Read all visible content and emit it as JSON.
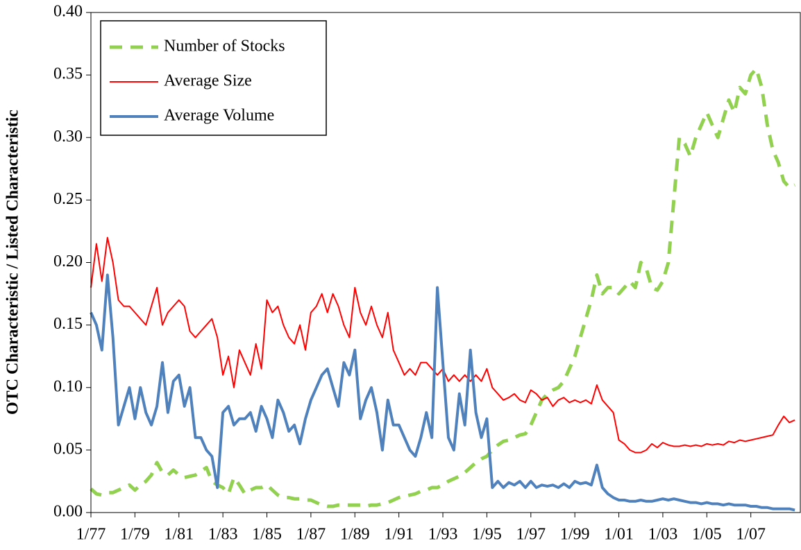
{
  "chart_data": {
    "type": "line",
    "y_label": "OTC Characteristic / Listed Characteristic",
    "x": [
      "1/77",
      "4/77",
      "7/77",
      "10/77",
      "1/78",
      "4/78",
      "7/78",
      "10/78",
      "1/79",
      "4/79",
      "7/79",
      "10/79",
      "1/80",
      "4/80",
      "7/80",
      "10/80",
      "1/81",
      "4/81",
      "7/81",
      "10/81",
      "1/82",
      "4/82",
      "7/82",
      "10/82",
      "1/83",
      "4/83",
      "7/83",
      "10/83",
      "1/84",
      "4/84",
      "7/84",
      "10/84",
      "1/85",
      "4/85",
      "7/85",
      "10/85",
      "1/86",
      "4/86",
      "7/86",
      "10/86",
      "1/87",
      "4/87",
      "7/87",
      "10/87",
      "1/88",
      "4/88",
      "7/88",
      "10/88",
      "1/89",
      "4/89",
      "7/89",
      "10/89",
      "1/90",
      "4/90",
      "7/90",
      "10/90",
      "1/91",
      "4/91",
      "7/91",
      "10/91",
      "1/92",
      "4/92",
      "7/92",
      "10/92",
      "1/93",
      "4/93",
      "7/93",
      "10/93",
      "1/94",
      "4/94",
      "7/94",
      "10/94",
      "1/95",
      "4/95",
      "7/95",
      "10/95",
      "1/96",
      "4/96",
      "7/96",
      "10/96",
      "1/97",
      "4/97",
      "7/97",
      "10/97",
      "1/98",
      "4/98",
      "7/98",
      "10/98",
      "1/99",
      "4/99",
      "7/99",
      "10/99",
      "1/00",
      "4/00",
      "7/00",
      "10/00",
      "1/01",
      "4/01",
      "7/01",
      "10/01",
      "1/02",
      "4/02",
      "7/02",
      "10/02",
      "1/03",
      "4/03",
      "7/03",
      "10/03",
      "1/04",
      "4/04",
      "7/04",
      "10/04",
      "1/05",
      "4/05",
      "7/05",
      "10/05",
      "1/06",
      "4/06",
      "7/06",
      "10/06",
      "1/07",
      "4/07",
      "7/07",
      "10/07",
      "1/08",
      "4/08",
      "7/08",
      "10/08",
      "1/09"
    ],
    "xlim": [
      "1/77",
      "4/09"
    ],
    "xticks": [
      "1/77",
      "1/79",
      "1/81",
      "1/83",
      "1/85",
      "1/87",
      "1/89",
      "1/91",
      "1/93",
      "1/95",
      "1/97",
      "1/99",
      "1/01",
      "1/03",
      "1/05",
      "1/07"
    ],
    "ylim": [
      0,
      0.4
    ],
    "yticks": [
      {
        "value": 0,
        "label": "0.00"
      },
      {
        "value": 0.05,
        "label": "0.05"
      },
      {
        "value": 0.1,
        "label": "0.10"
      },
      {
        "value": 0.15,
        "label": "0.15"
      },
      {
        "value": 0.2,
        "label": "0.20"
      },
      {
        "value": 0.25,
        "label": "0.25"
      },
      {
        "value": 0.3,
        "label": "0.30"
      },
      {
        "value": 0.35,
        "label": "0.35"
      },
      {
        "value": 0.4,
        "label": "0.40"
      }
    ],
    "legend": "upper left",
    "series": [
      {
        "name": "Number of Stocks",
        "color": "#92d050",
        "style": "dashed",
        "width": 5,
        "values": [
          0.019,
          0.015,
          0.014,
          0.016,
          0.016,
          0.018,
          0.02,
          0.022,
          0.018,
          0.022,
          0.025,
          0.03,
          0.04,
          0.032,
          0.03,
          0.034,
          0.03,
          0.028,
          0.029,
          0.03,
          0.033,
          0.036,
          0.025,
          0.022,
          0.02,
          0.015,
          0.028,
          0.022,
          0.015,
          0.018,
          0.02,
          0.02,
          0.022,
          0.018,
          0.014,
          0.012,
          0.012,
          0.011,
          0.011,
          0.01,
          0.01,
          0.008,
          0.006,
          0.005,
          0.005,
          0.006,
          0.006,
          0.006,
          0.006,
          0.006,
          0.005,
          0.006,
          0.006,
          0.007,
          0.008,
          0.01,
          0.012,
          0.013,
          0.014,
          0.015,
          0.017,
          0.018,
          0.02,
          0.02,
          0.022,
          0.025,
          0.027,
          0.029,
          0.032,
          0.036,
          0.04,
          0.043,
          0.045,
          0.05,
          0.054,
          0.057,
          0.058,
          0.06,
          0.062,
          0.063,
          0.07,
          0.08,
          0.09,
          0.095,
          0.098,
          0.1,
          0.105,
          0.115,
          0.125,
          0.14,
          0.155,
          0.17,
          0.19,
          0.175,
          0.18,
          0.18,
          0.175,
          0.18,
          0.185,
          0.18,
          0.2,
          0.195,
          0.18,
          0.178,
          0.185,
          0.2,
          0.25,
          0.3,
          0.295,
          0.285,
          0.3,
          0.31,
          0.32,
          0.31,
          0.3,
          0.315,
          0.33,
          0.32,
          0.34,
          0.335,
          0.35,
          0.355,
          0.34,
          0.31,
          0.29,
          0.28,
          0.265,
          0.26,
          0.262
        ]
      },
      {
        "name": "Average Size",
        "color": "#ff0000",
        "style": "solid",
        "width": 2,
        "values": [
          0.18,
          0.215,
          0.185,
          0.22,
          0.2,
          0.17,
          0.165,
          0.165,
          0.16,
          0.155,
          0.15,
          0.165,
          0.18,
          0.15,
          0.16,
          0.165,
          0.17,
          0.165,
          0.145,
          0.14,
          0.145,
          0.15,
          0.155,
          0.14,
          0.11,
          0.125,
          0.1,
          0.13,
          0.12,
          0.11,
          0.135,
          0.115,
          0.17,
          0.16,
          0.165,
          0.15,
          0.14,
          0.135,
          0.15,
          0.13,
          0.16,
          0.165,
          0.175,
          0.16,
          0.175,
          0.165,
          0.15,
          0.14,
          0.18,
          0.16,
          0.15,
          0.165,
          0.15,
          0.14,
          0.16,
          0.13,
          0.12,
          0.11,
          0.115,
          0.11,
          0.12,
          0.12,
          0.115,
          0.11,
          0.115,
          0.105,
          0.11,
          0.105,
          0.11,
          0.105,
          0.11,
          0.105,
          0.115,
          0.1,
          0.095,
          0.09,
          0.092,
          0.095,
          0.09,
          0.088,
          0.098,
          0.095,
          0.09,
          0.092,
          0.085,
          0.09,
          0.092,
          0.088,
          0.09,
          0.088,
          0.09,
          0.087,
          0.102,
          0.09,
          0.085,
          0.08,
          0.058,
          0.055,
          0.05,
          0.048,
          0.048,
          0.05,
          0.055,
          0.052,
          0.056,
          0.054,
          0.053,
          0.053,
          0.054,
          0.053,
          0.054,
          0.053,
          0.055,
          0.054,
          0.055,
          0.054,
          0.057,
          0.056,
          0.058,
          0.057,
          0.058,
          0.059,
          0.06,
          0.061,
          0.062,
          0.07,
          0.077,
          0.072,
          0.074
        ]
      },
      {
        "name": "Average Volume",
        "color": "#4f81bd",
        "style": "solid",
        "width": 4,
        "values": [
          0.16,
          0.15,
          0.13,
          0.19,
          0.14,
          0.07,
          0.085,
          0.1,
          0.075,
          0.1,
          0.08,
          0.07,
          0.085,
          0.12,
          0.08,
          0.105,
          0.11,
          0.085,
          0.1,
          0.06,
          0.06,
          0.05,
          0.045,
          0.02,
          0.08,
          0.085,
          0.07,
          0.075,
          0.075,
          0.08,
          0.065,
          0.085,
          0.075,
          0.06,
          0.09,
          0.08,
          0.065,
          0.07,
          0.055,
          0.075,
          0.09,
          0.1,
          0.11,
          0.115,
          0.1,
          0.085,
          0.12,
          0.11,
          0.13,
          0.075,
          0.09,
          0.1,
          0.08,
          0.05,
          0.09,
          0.07,
          0.07,
          0.06,
          0.05,
          0.045,
          0.06,
          0.08,
          0.06,
          0.18,
          0.12,
          0.06,
          0.05,
          0.095,
          0.07,
          0.13,
          0.08,
          0.06,
          0.075,
          0.02,
          0.025,
          0.02,
          0.024,
          0.022,
          0.025,
          0.02,
          0.025,
          0.02,
          0.022,
          0.021,
          0.022,
          0.02,
          0.023,
          0.02,
          0.025,
          0.023,
          0.024,
          0.022,
          0.038,
          0.02,
          0.015,
          0.012,
          0.01,
          0.01,
          0.009,
          0.009,
          0.01,
          0.009,
          0.009,
          0.01,
          0.011,
          0.01,
          0.011,
          0.01,
          0.009,
          0.008,
          0.008,
          0.007,
          0.008,
          0.007,
          0.007,
          0.006,
          0.007,
          0.006,
          0.006,
          0.006,
          0.005,
          0.005,
          0.004,
          0.004,
          0.003,
          0.003,
          0.003,
          0.003,
          0.002
        ]
      }
    ]
  }
}
